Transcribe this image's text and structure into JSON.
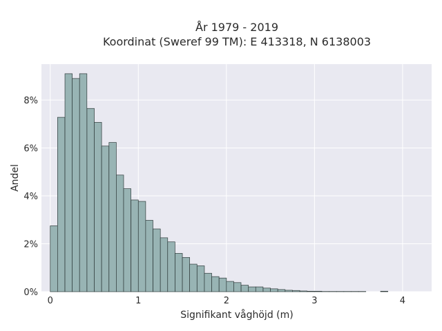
{
  "chart_data": {
    "type": "bar",
    "title_line1": "År 1979 - 2019",
    "title_line2": "Koordinat (Sweref 99 TM): E 413318, N 6138003",
    "xlabel": "Signifikant våghöjd (m)",
    "ylabel": "Andel",
    "xlim": [
      -0.1,
      4.33
    ],
    "ylim": [
      0,
      9.5
    ],
    "x_ticks": [
      0,
      1,
      2,
      3,
      4
    ],
    "x_tick_labels": [
      "0",
      "1",
      "2",
      "3",
      "4"
    ],
    "y_ticks": [
      0,
      2,
      4,
      6,
      8
    ],
    "y_tick_labels": [
      "0%",
      "2%",
      "4%",
      "6%",
      "8%"
    ],
    "grid": true,
    "bin_width": 0.083,
    "bins_start": [
      0,
      0.083,
      0.167,
      0.25,
      0.333,
      0.417,
      0.5,
      0.583,
      0.667,
      0.75,
      0.833,
      0.917,
      1.0,
      1.083,
      1.167,
      1.25,
      1.333,
      1.417,
      1.5,
      1.583,
      1.667,
      1.75,
      1.833,
      1.917,
      2.0,
      2.083,
      2.167,
      2.25,
      2.333,
      2.417,
      2.5,
      2.583,
      2.667,
      2.75,
      2.833,
      2.917,
      3.0,
      3.083,
      3.167,
      3.25,
      3.333,
      3.417,
      3.5,
      3.583,
      3.667,
      3.75
    ],
    "values": [
      2.75,
      7.28,
      9.1,
      8.9,
      9.1,
      7.65,
      7.07,
      6.08,
      6.23,
      4.87,
      4.3,
      3.83,
      3.77,
      2.98,
      2.62,
      2.25,
      2.08,
      1.6,
      1.43,
      1.15,
      1.08,
      0.77,
      0.63,
      0.57,
      0.43,
      0.38,
      0.27,
      0.2,
      0.2,
      0.15,
      0.12,
      0.09,
      0.06,
      0.05,
      0.03,
      0.02,
      0.02,
      0.01,
      0.01,
      0.01,
      0.01,
      0.01,
      0.01,
      0.0,
      0.0,
      0.02
    ],
    "colors": {
      "bar_fill": "#98b4b4",
      "bar_stroke": "#2f3b3b",
      "plot_bg": "#e9e9f1",
      "grid": "#ffffff",
      "text": "#2a2a2a"
    }
  }
}
